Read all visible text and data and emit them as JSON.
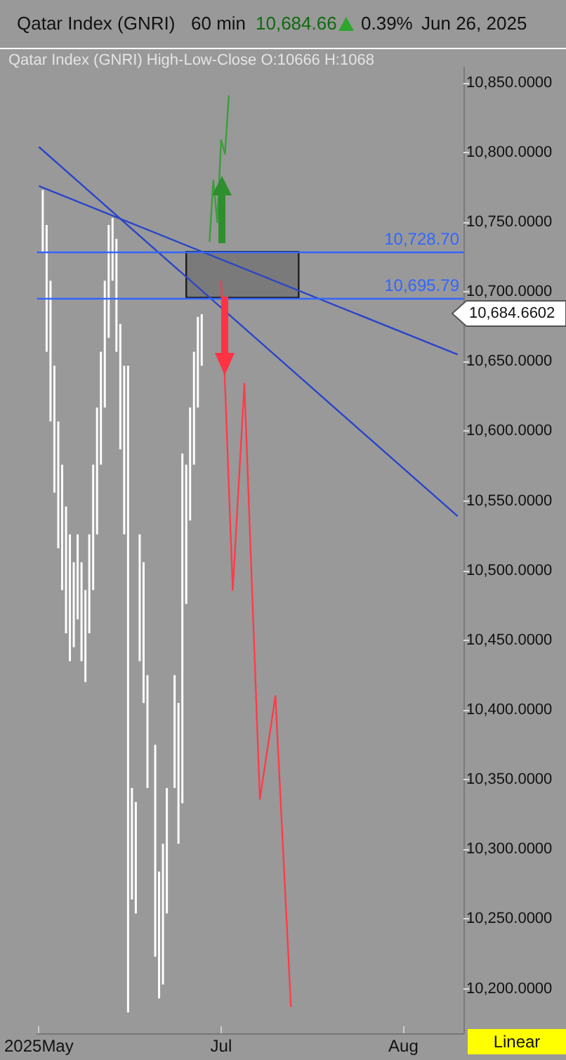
{
  "chart_data": {
    "type": "bar",
    "title": "Qatar Index  (GNRI)",
    "subtitle": "Qatar Index (GNRI)  High-Low-Close    O:10666   H:1068",
    "annotations": [
      "60 min",
      "10,684.66",
      "0.39%",
      "Jun 26, 2025",
      "10,684.6602",
      "Linear"
    ],
    "categories": [
      "2025May",
      null,
      null,
      null,
      null,
      null,
      null,
      null,
      null,
      null,
      null,
      null,
      null,
      null,
      null,
      null,
      null,
      null,
      null,
      null,
      null,
      null,
      null,
      null,
      null,
      null,
      null,
      null,
      null,
      null,
      null,
      null,
      null,
      null,
      null,
      null,
      null,
      null,
      null,
      null,
      null,
      null,
      null,
      null,
      null,
      null,
      null,
      "Jul",
      null,
      null,
      null,
      null,
      null,
      null,
      null,
      null,
      null,
      null,
      null,
      null,
      null,
      null,
      null,
      null,
      null,
      null,
      null,
      null,
      null,
      null,
      null,
      null,
      null,
      null,
      null,
      null,
      null,
      null,
      null,
      null,
      null,
      null,
      null,
      null,
      null,
      null,
      null,
      null,
      null,
      null,
      null,
      null,
      null,
      null,
      "Aug",
      null,
      null,
      null,
      null,
      null,
      null,
      null,
      null,
      null,
      null,
      null,
      null,
      null,
      null,
      null
    ],
    "ylim": [
      10168,
      10861
    ],
    "yticks": [
      {
        "value": 10200,
        "label": "10,200.0000"
      },
      {
        "value": 10250,
        "label": "10,250.0000"
      },
      {
        "value": 10300,
        "label": "10,300.0000"
      },
      {
        "value": 10350,
        "label": "10,350.0000"
      },
      {
        "value": 10400,
        "label": "10,400.0000"
      },
      {
        "value": 10450,
        "label": "10,450.0000"
      },
      {
        "value": 10500,
        "label": "10,500.0000"
      },
      {
        "value": 10550,
        "label": "10,550.0000"
      },
      {
        "value": 10600,
        "label": "10,600.0000"
      },
      {
        "value": 10650,
        "label": "10,650.0000"
      },
      {
        "value": 10700,
        "label": "10,700.0000"
      },
      {
        "value": 10750,
        "label": "10,750.0000"
      },
      {
        "value": 10800,
        "label": "10,800.0000"
      },
      {
        "value": 10850,
        "label": "10,850.0000"
      }
    ],
    "grid": false,
    "marker": "none",
    "series": [
      {
        "color": "#ffffff",
        "base": [
          null,
          10728,
          10657,
          10607,
          10556,
          10516,
          10486,
          10455,
          10435,
          10445,
          10465,
          10435,
          10420,
          10455,
          10486,
          10526,
          10576,
          10617,
          10667,
          10708,
          10657,
          10587,
          10526,
          10183,
          10264,
          10254,
          10435,
          10405,
          10344,
          null,
          10223,
          10193,
          10203,
          10254,
          null,
          10344,
          10304,
          10333,
          10476,
          10536,
          10576,
          10617,
          10647,
          null,
          null,
          null,
          null,
          null,
          null,
          null,
          null,
          null,
          null,
          null,
          null,
          null,
          null,
          null,
          null,
          null,
          null,
          null,
          null,
          null,
          null,
          null,
          null,
          null,
          null,
          null,
          null,
          null,
          null,
          null,
          null,
          null,
          null,
          null,
          null,
          null,
          null,
          null,
          null,
          null,
          null,
          null,
          null,
          null,
          null,
          null,
          null,
          null,
          null,
          null,
          null,
          null,
          null,
          null,
          null,
          null,
          null,
          null,
          null,
          null,
          null,
          null,
          null,
          null,
          null,
          null
        ],
        "values": [
          null,
          45,
          91,
          101,
          91,
          91,
          90,
          91,
          91,
          61,
          61,
          71,
          66,
          71,
          90,
          91,
          81,
          91,
          81,
          45,
          81,
          90,
          121,
          464,
          80,
          80,
          91,
          101,
          81,
          null,
          152,
          91,
          101,
          90,
          null,
          81,
          101,
          251,
          100,
          81,
          81,
          65,
          37,
          null,
          null,
          null,
          null,
          null,
          null,
          null,
          null,
          null,
          null,
          null,
          null,
          null,
          null,
          null,
          null,
          null,
          null,
          null,
          null,
          null,
          null,
          null,
          null,
          null,
          null,
          null,
          null,
          null,
          null,
          null,
          null,
          null,
          null,
          null,
          null,
          null,
          null,
          null,
          null,
          null,
          null,
          null,
          null,
          null,
          null,
          null,
          null,
          null,
          null,
          null,
          null,
          null,
          null,
          null,
          null,
          null,
          null,
          null,
          null,
          null,
          null,
          null,
          null,
          null,
          null,
          null
        ]
      },
      {
        "type": "line",
        "color": "#2b45c8",
        "values": [
          10804,
          null,
          null,
          null,
          null,
          null,
          null,
          null,
          null,
          null,
          null,
          null,
          null,
          null,
          null,
          null,
          null,
          null,
          null,
          null,
          null,
          null,
          null,
          null,
          null,
          null,
          null,
          null,
          null,
          null,
          null,
          null,
          null,
          null,
          null,
          null,
          null,
          null,
          null,
          null,
          null,
          null,
          null,
          null,
          null,
          null,
          null,
          null,
          null,
          null,
          null,
          null,
          null,
          null,
          null,
          null,
          null,
          null,
          null,
          null,
          null,
          null,
          null,
          null,
          null,
          null,
          null,
          null,
          null,
          null,
          null,
          null,
          null,
          null,
          null,
          null,
          null,
          null,
          null,
          null,
          null,
          null,
          null,
          null,
          null,
          null,
          null,
          null,
          null,
          null,
          null,
          null,
          null,
          null,
          null,
          null,
          null,
          null,
          null,
          null,
          null,
          null,
          null,
          null,
          null,
          null,
          null,
          null,
          10539,
          null
        ]
      },
      {
        "type": "line",
        "color": "#2b45c8",
        "values": [
          10776,
          null,
          null,
          null,
          null,
          null,
          null,
          null,
          null,
          null,
          null,
          null,
          null,
          null,
          null,
          null,
          null,
          null,
          null,
          null,
          null,
          null,
          null,
          null,
          null,
          null,
          null,
          null,
          null,
          null,
          null,
          null,
          null,
          null,
          null,
          null,
          null,
          null,
          null,
          null,
          null,
          null,
          null,
          null,
          null,
          null,
          null,
          null,
          null,
          null,
          null,
          null,
          null,
          null,
          null,
          null,
          null,
          null,
          null,
          null,
          null,
          null,
          null,
          null,
          null,
          null,
          null,
          null,
          null,
          null,
          null,
          null,
          null,
          null,
          null,
          null,
          null,
          null,
          null,
          null,
          null,
          null,
          null,
          null,
          null,
          null,
          null,
          null,
          null,
          null,
          null,
          null,
          null,
          null,
          null,
          null,
          null,
          null,
          null,
          null,
          null,
          null,
          null,
          null,
          null,
          null,
          null,
          null,
          10655,
          null
        ]
      },
      {
        "type": "line",
        "color": "#3c9e3c",
        "values": [
          null,
          null,
          null,
          null,
          null,
          null,
          null,
          null,
          null,
          null,
          null,
          null,
          null,
          null,
          null,
          null,
          null,
          null,
          null,
          null,
          null,
          null,
          null,
          null,
          null,
          null,
          null,
          null,
          null,
          null,
          null,
          null,
          null,
          null,
          null,
          null,
          null,
          null,
          null,
          null,
          null,
          null,
          null,
          null,
          10736,
          10780,
          10750,
          10809,
          10799,
          10841,
          null,
          null,
          null,
          null,
          null,
          null,
          null,
          null,
          null,
          null,
          null,
          null,
          null,
          null,
          null,
          null,
          null,
          null,
          null,
          null,
          null,
          null,
          null,
          null,
          null,
          null,
          null,
          null,
          null,
          null,
          null,
          null,
          null,
          null,
          null,
          null,
          null,
          null,
          null,
          null,
          null,
          null,
          null,
          null,
          null,
          null,
          null,
          null,
          null,
          null,
          null,
          null,
          null,
          null,
          null,
          null,
          null,
          null,
          null,
          null
        ]
      },
      {
        "type": "line",
        "color": "#ff3b4a",
        "values": [
          null,
          null,
          null,
          null,
          null,
          null,
          null,
          null,
          null,
          null,
          null,
          null,
          null,
          null,
          null,
          null,
          null,
          null,
          null,
          null,
          null,
          null,
          null,
          null,
          null,
          null,
          null,
          null,
          null,
          null,
          null,
          null,
          null,
          null,
          null,
          null,
          null,
          null,
          null,
          null,
          null,
          null,
          null,
          null,
          null,
          null,
          null,
          10708,
          null,
          null,
          10486,
          null,
          null,
          10634,
          null,
          null,
          null,
          10336,
          null,
          null,
          null,
          10410,
          null,
          null,
          null,
          10187,
          null,
          null,
          null,
          null,
          null,
          null,
          null,
          null,
          null,
          null,
          null,
          null,
          null,
          null,
          null,
          null,
          null,
          null,
          null,
          null,
          null,
          null,
          null,
          null,
          null,
          null,
          null,
          null,
          null,
          null,
          null,
          null,
          null,
          null,
          null,
          null,
          null,
          null,
          null,
          null,
          null,
          null,
          null,
          null
        ]
      }
    ],
    "bands": [
      {
        "axis": "y",
        "from": 10695.79,
        "to": 10728.7,
        "color": "#777777"
      }
    ],
    "ref_lines": [
      {
        "axis": "y",
        "value": 10728.7,
        "label": "10,728.70",
        "color": "#3366ff"
      },
      {
        "axis": "y",
        "value": 10695.79,
        "label": "10,695.79",
        "color": "#3366ff"
      }
    ]
  }
}
